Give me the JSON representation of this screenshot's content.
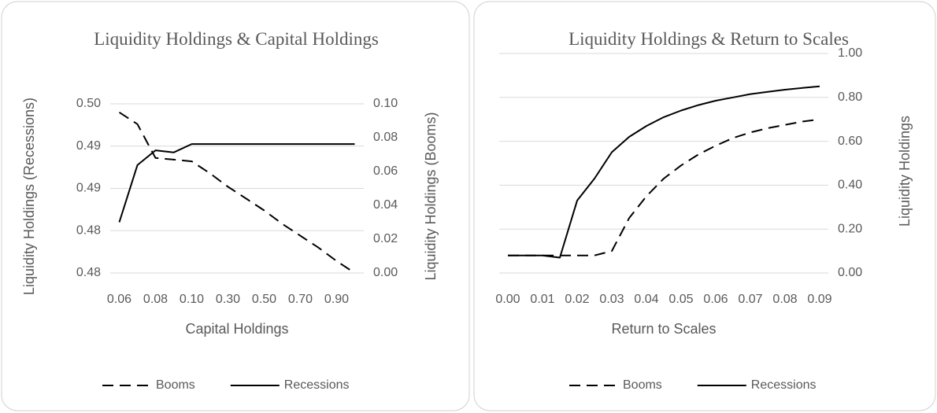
{
  "chart_data": [
    {
      "type": "line",
      "title": "Liquidity Holdings & Capital Holdings",
      "x_label": "Capital Holdings",
      "y_label": "Liquidity Holdings (Recessions)",
      "y2_label": "Liquidity Holdings (Booms)",
      "categories": [
        "0.06",
        null,
        "0.08",
        null,
        "0.10",
        null,
        "0.30",
        null,
        "0.50",
        null,
        "0.70",
        null,
        "0.90",
        null
      ],
      "ylim": [
        0.48,
        0.496
      ],
      "yticks": [
        {
          "value": 0.48,
          "label": "0.48"
        },
        {
          "value": 0.484,
          "label": "0.48"
        },
        {
          "value": 0.488,
          "label": "0.49"
        },
        {
          "value": 0.492,
          "label": "0.49"
        },
        {
          "value": 0.496,
          "label": "0.50"
        }
      ],
      "y2lim": [
        0,
        0.1
      ],
      "y2ticks": [
        {
          "value": 0,
          "label": "0.00"
        },
        0.02,
        0.04,
        0.06,
        0.08,
        {
          "value": 0.1,
          "label": "0.10"
        }
      ],
      "grid": true,
      "legend": "bottom",
      "series": [
        {
          "name": "Booms",
          "color": "#000000",
          "line_style": "dashed",
          "axis": "y2",
          "values": [
            0.095,
            0.088,
            0.068,
            0.067,
            0.066,
            0.059,
            0.051,
            0.044,
            0.037,
            0.029,
            0.022,
            0.015,
            0.007,
            0.0
          ]
        },
        {
          "name": "Recessions",
          "color": "#000000",
          "line_style": "solid",
          "axis": "y",
          "values": [
            0.4848,
            0.4902,
            0.4916,
            0.4914,
            0.4922,
            0.4922,
            0.4922,
            0.4922,
            0.4922,
            0.4922,
            0.4922,
            0.4922,
            0.4922,
            0.4922
          ]
        }
      ]
    },
    {
      "type": "line",
      "title": "Liquidity Holdings & Return to Scales",
      "x_label": "Return to Scales",
      "y2_label": "Liquidity Holdings",
      "categories": [
        "0.00",
        null,
        "0.01",
        null,
        "0.02",
        null,
        "0.03",
        null,
        "0.04",
        null,
        "0.05",
        null,
        "0.06",
        null,
        "0.07",
        null,
        "0.08",
        null,
        "0.09"
      ],
      "y2lim": [
        0,
        1
      ],
      "y2ticks": [
        {
          "value": 0,
          "label": "0.00"
        },
        {
          "value": 0.2,
          "label": "0.20"
        },
        {
          "value": 0.4,
          "label": "0.40"
        },
        {
          "value": 0.6,
          "label": "0.60"
        },
        {
          "value": 0.8,
          "label": "0.80"
        },
        {
          "value": 1,
          "label": "1.00"
        }
      ],
      "grid": true,
      "legend": "bottom",
      "series": [
        {
          "name": "Booms",
          "color": "#000000",
          "line_style": "dashed",
          "axis": "y2",
          "values": [
            0.08,
            0.08,
            0.08,
            0.08,
            0.08,
            0.08,
            0.1,
            0.25,
            0.35,
            0.43,
            0.49,
            0.54,
            0.58,
            0.615,
            0.64,
            0.66,
            0.675,
            0.69,
            0.7
          ]
        },
        {
          "name": "Recessions",
          "color": "#000000",
          "line_style": "solid",
          "axis": "y2",
          "values": [
            0.08,
            0.08,
            0.08,
            0.07,
            0.33,
            0.43,
            0.55,
            0.62,
            0.67,
            0.71,
            0.74,
            0.765,
            0.785,
            0.8,
            0.815,
            0.825,
            0.835,
            0.843,
            0.85
          ]
        }
      ]
    }
  ]
}
